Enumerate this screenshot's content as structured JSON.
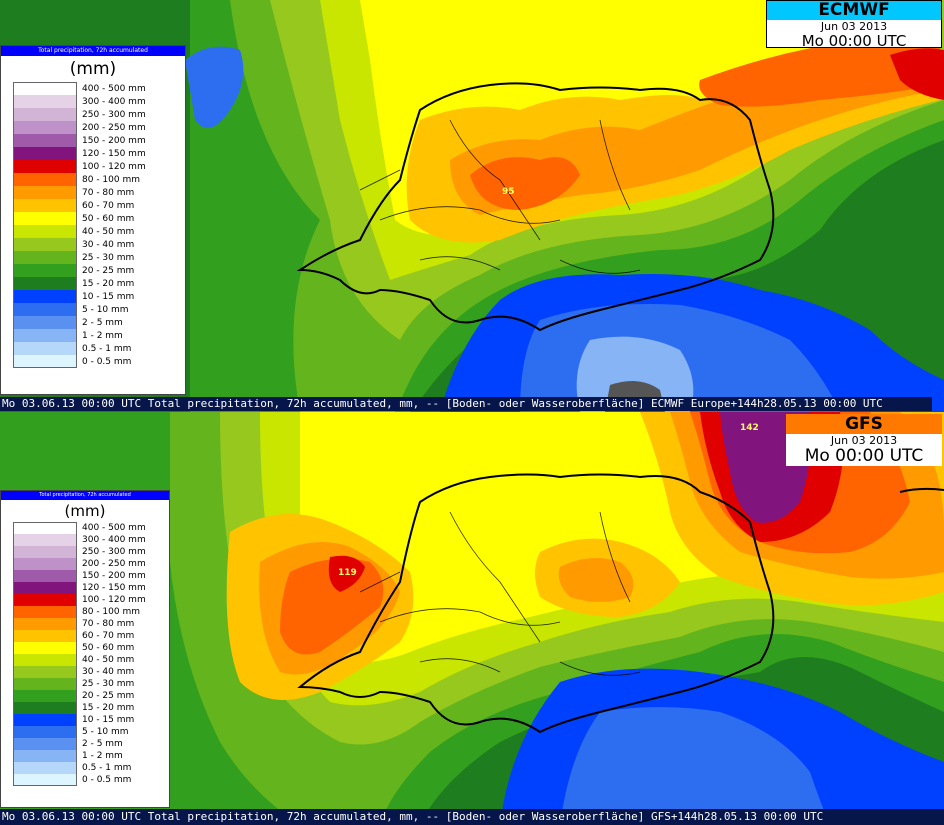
{
  "legend": {
    "header": "Total precipitation, 72h accumulated",
    "unit": "(mm)",
    "items": [
      {
        "label": "400 - 500 mm",
        "color": "#ffffff"
      },
      {
        "label": "300 - 400 mm",
        "color": "#e6d2e6"
      },
      {
        "label": "250 - 300 mm",
        "color": "#d2b4d7"
      },
      {
        "label": "200 - 250 mm",
        "color": "#be91c8"
      },
      {
        "label": "150 - 200 mm",
        "color": "#a05aaa"
      },
      {
        "label": "120 - 150 mm",
        "color": "#82147d"
      },
      {
        "label": "100 - 120 mm",
        "color": "#e10000"
      },
      {
        "label": "80 - 100 mm",
        "color": "#ff6400"
      },
      {
        "label": "70 - 80 mm",
        "color": "#ff9b00"
      },
      {
        "label": "60 - 70 mm",
        "color": "#ffc300"
      },
      {
        "label": "50 - 60 mm",
        "color": "#ffff00"
      },
      {
        "label": "40 - 50 mm",
        "color": "#c8e600"
      },
      {
        "label": "30 - 40 mm",
        "color": "#96c81e"
      },
      {
        "label": "25 - 30 mm",
        "color": "#64b41e"
      },
      {
        "label": "20 - 25 mm",
        "color": "#32a01e"
      },
      {
        "label": "15 - 20 mm",
        "color": "#1e7d1e"
      },
      {
        "label": "10 - 15 mm",
        "color": "#0041ff"
      },
      {
        "label": "5 - 10 mm",
        "color": "#2d6ef0"
      },
      {
        "label": "2 - 5 mm",
        "color": "#5a91f0"
      },
      {
        "label": "1 - 2 mm",
        "color": "#87b4f5"
      },
      {
        "label": "0.5 - 1 mm",
        "color": "#b4d7fa"
      },
      {
        "label": "0 - 0.5 mm",
        "color": "#dcf5ff"
      }
    ]
  },
  "ecmwf": {
    "model": "ECMWF",
    "model_color": "#00c8ff",
    "date": "Jun 03 2013",
    "time": "Mo 00:00 UTC",
    "max_label": "95",
    "status": "Mo 03.06.13 00:00 UTC  Total precipitation, 72h accumulated, mm, -- [Boden- oder Wasseroberfläche] ECMWF  Europe+144h28.05.13 00:00 UTC"
  },
  "gfs": {
    "model": "GFS",
    "model_color": "#ff7800",
    "date": "Jun 03 2013",
    "time": "Mo 00:00 UTC",
    "max_label_east": "142",
    "max_label_west": "119",
    "status": "Mo 03.06.13 00:00 UTC  Total precipitation, 72h accumulated, mm, -- [Boden- oder Wasseroberfläche] GFS+144h28.05.13 00:00 UTC"
  }
}
